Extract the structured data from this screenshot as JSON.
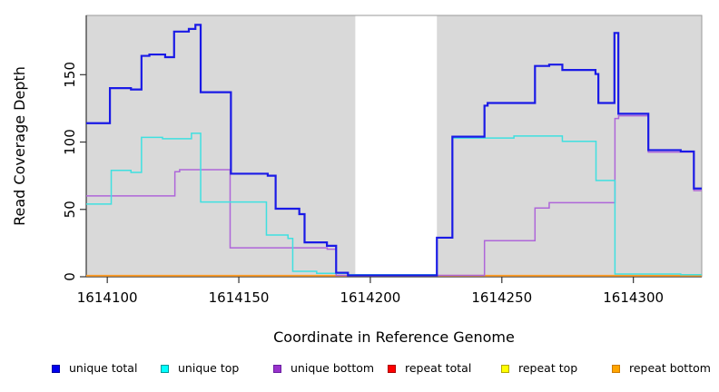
{
  "chart_data": {
    "type": "line",
    "subtype": "step-after-coverage",
    "title": "",
    "xlabel": "Coordinate in Reference Genome",
    "ylabel": "Read Coverage Depth",
    "xlim": [
      1614092,
      1614326
    ],
    "ylim": [
      0,
      194
    ],
    "x_ticks": [
      1614100,
      1614150,
      1614200,
      1614250,
      1614300
    ],
    "y_ticks": [
      0,
      50,
      100,
      150
    ],
    "grid": false,
    "legend_position": "bottom",
    "panel_background": "#ffffff",
    "panel_border_color": "#999999",
    "axis_color": "#333333",
    "shaded_regions": [
      {
        "x0": 1614092,
        "x1": 1614194.3,
        "color": "#d9d9d9"
      },
      {
        "x0": 1614225.3,
        "x1": 1614326,
        "color": "#d9d9d9"
      }
    ],
    "series": [
      {
        "name": "unique total",
        "line_color": "#1a1ae6",
        "swatch_color": "#0000ee",
        "swatch_edge": "#0000a0",
        "line_width": 2.2,
        "z_order": 6,
        "step_points": [
          [
            1614092,
            114
          ],
          [
            1614101,
            140
          ],
          [
            1614109,
            139
          ],
          [
            1614113,
            164
          ],
          [
            1614116,
            165
          ],
          [
            1614122,
            163
          ],
          [
            1614125.4,
            182
          ],
          [
            1614131,
            184
          ],
          [
            1614133.5,
            187
          ],
          [
            1614135.5,
            137
          ],
          [
            1614147,
            76.5
          ],
          [
            1614161,
            75
          ],
          [
            1614164,
            50.5
          ],
          [
            1614173,
            46.5
          ],
          [
            1614175,
            25.5
          ],
          [
            1614183.5,
            23
          ],
          [
            1614187,
            3
          ],
          [
            1614191.5,
            1
          ],
          [
            1614225.3,
            29
          ],
          [
            1614231.2,
            104
          ],
          [
            1614243.4,
            127
          ],
          [
            1614244.6,
            129
          ],
          [
            1614262.6,
            156.5
          ],
          [
            1614268,
            157.5
          ],
          [
            1614273,
            153.5
          ],
          [
            1614285.6,
            150.5
          ],
          [
            1614286.7,
            129
          ],
          [
            1614292.8,
            181
          ],
          [
            1614294.3,
            121
          ],
          [
            1614305.7,
            94
          ],
          [
            1614318,
            93
          ],
          [
            1614323,
            65.5
          ]
        ]
      },
      {
        "name": "unique top",
        "line_color": "#3fe0e0",
        "swatch_color": "#00ffff",
        "swatch_edge": "#009999",
        "line_width": 1.5,
        "z_order": 5,
        "step_points": [
          [
            1614092,
            54
          ],
          [
            1614101.5,
            79
          ],
          [
            1614109,
            77.5
          ],
          [
            1614113,
            103.5
          ],
          [
            1614121,
            102.5
          ],
          [
            1614132,
            106.5
          ],
          [
            1614135.5,
            55.5
          ],
          [
            1614160.5,
            31
          ],
          [
            1614168.7,
            28.5
          ],
          [
            1614170.5,
            4
          ],
          [
            1614179.6,
            2.5
          ],
          [
            1614191.5,
            1.5
          ],
          [
            1614225.3,
            29
          ],
          [
            1614231.2,
            103
          ],
          [
            1614254.6,
            104.5
          ],
          [
            1614273,
            100.5
          ],
          [
            1614285.8,
            71.5
          ],
          [
            1614293,
            2
          ],
          [
            1614318,
            1.5
          ]
        ]
      },
      {
        "name": "unique bottom",
        "line_color": "#ae66d9",
        "swatch_color": "#9932cc",
        "swatch_edge": "#6a1fa0",
        "line_width": 1.5,
        "z_order": 4,
        "step_points": [
          [
            1614092,
            60
          ],
          [
            1614125.7,
            78
          ],
          [
            1614127.5,
            79.5
          ],
          [
            1614146.7,
            21.5
          ],
          [
            1614183.6,
            20.5
          ],
          [
            1614187,
            1
          ],
          [
            1614243.4,
            26.8
          ],
          [
            1614262.6,
            51
          ],
          [
            1614268,
            55
          ],
          [
            1614293,
            117.5
          ],
          [
            1614294.4,
            119.5
          ],
          [
            1614305.7,
            92.5
          ],
          [
            1614323,
            64
          ]
        ]
      },
      {
        "name": "repeat total",
        "line_color": "#e60000",
        "swatch_color": "#ff0000",
        "swatch_edge": "#aa0000",
        "line_width": 1.2,
        "z_order": 1,
        "step_points": [
          [
            1614092,
            0
          ]
        ]
      },
      {
        "name": "repeat top",
        "line_color": "#f5f500",
        "swatch_color": "#ffff00",
        "swatch_edge": "#b3a800",
        "line_width": 1.2,
        "z_order": 2,
        "step_points": [
          [
            1614092,
            0
          ]
        ]
      },
      {
        "name": "repeat bottom",
        "line_color": "#ff9d26",
        "swatch_color": "#ffa500",
        "swatch_edge": "#cc7a00",
        "line_width": 1.8,
        "z_order": 3,
        "step_points": [
          [
            1614092,
            0
          ]
        ]
      }
    ]
  }
}
